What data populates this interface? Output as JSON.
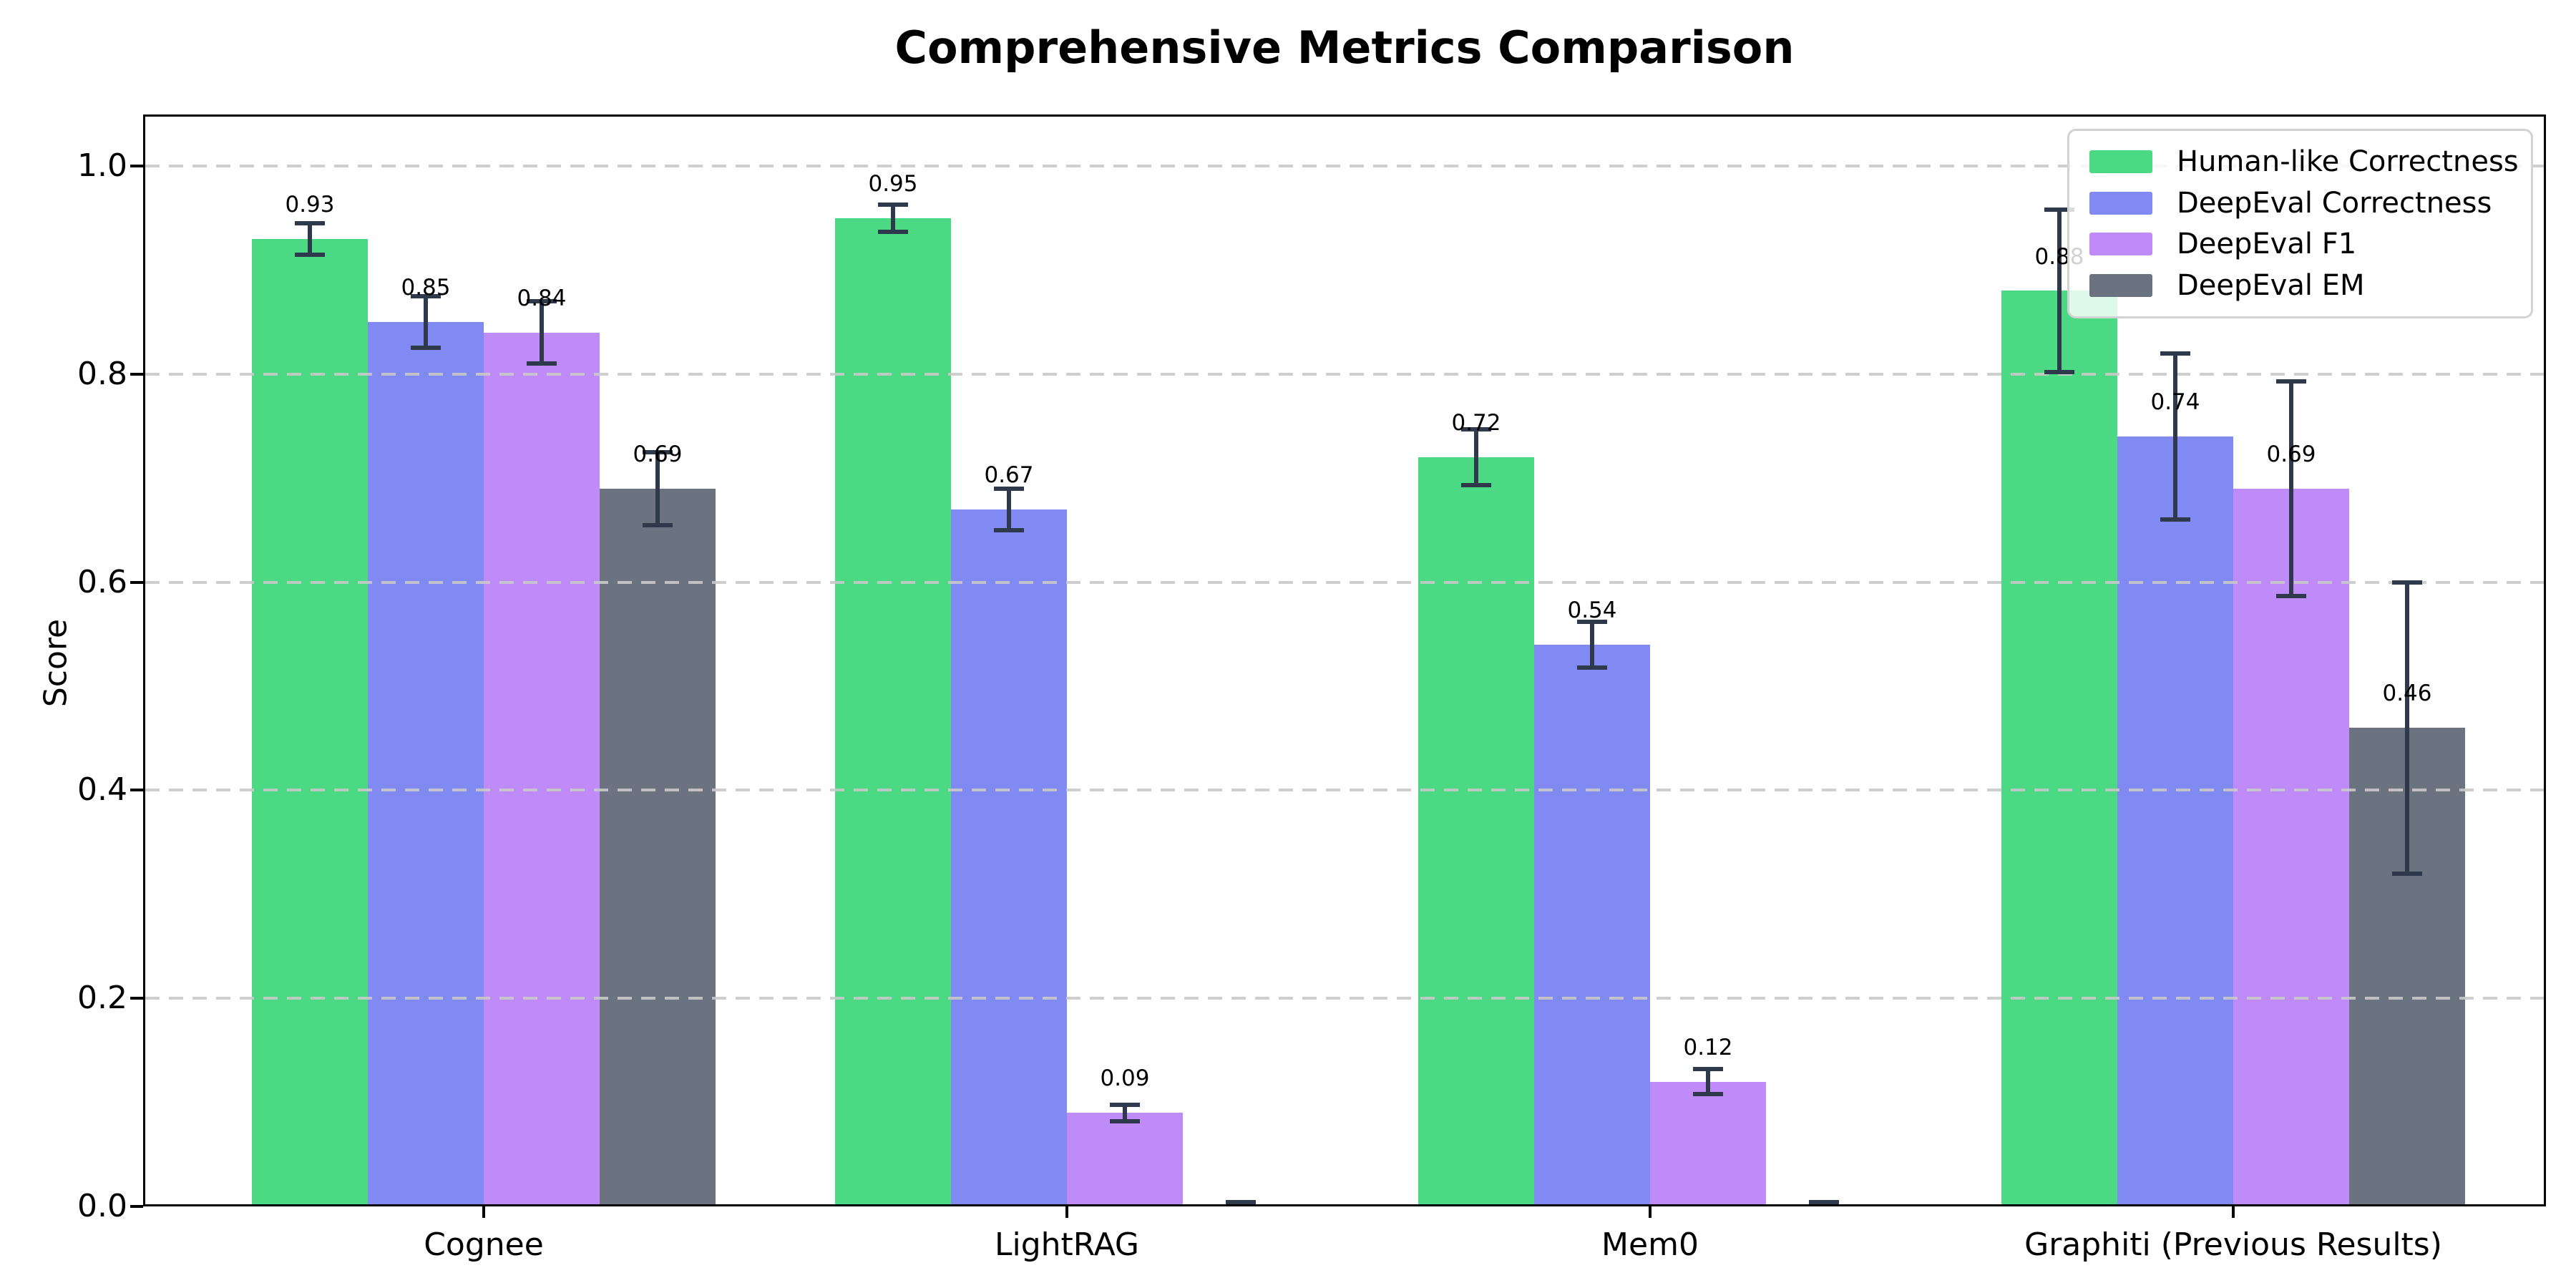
{
  "figure": {
    "title": "Comprehensive Metrics Comparison",
    "ylabel": "Score"
  },
  "chart_data": {
    "type": "bar",
    "title": "Comprehensive Metrics Comparison",
    "xlabel": "",
    "ylabel": "Score",
    "categories": [
      "Cognee",
      "LightRAG",
      "Mem0",
      "Graphiti (Previous Results)"
    ],
    "series": [
      {
        "name": "Human-like Correctness",
        "color": "#4bda83",
        "values": [
          0.93,
          0.95,
          0.72,
          0.88
        ],
        "errors": [
          0.015,
          0.013,
          0.027,
          0.078
        ],
        "bar_labels": [
          "0.93",
          "0.95",
          "0.72",
          "0.88"
        ]
      },
      {
        "name": "DeepEval Correctness",
        "color": "#8189f2",
        "values": [
          0.85,
          0.67,
          0.54,
          0.74
        ],
        "errors": [
          0.025,
          0.02,
          0.022,
          0.08
        ],
        "bar_labels": [
          "0.85",
          "0.67",
          "0.54",
          "0.74"
        ]
      },
      {
        "name": "DeepEval F1",
        "color": "#be8bf8",
        "values": [
          0.84,
          0.09,
          0.12,
          0.69
        ],
        "errors": [
          0.03,
          0.008,
          0.012,
          0.103
        ],
        "bar_labels": [
          "0.84",
          "0.09",
          "0.12",
          "0.69"
        ]
      },
      {
        "name": "DeepEval EM",
        "color": "#6b7280",
        "values": [
          0.69,
          0.0,
          0.0,
          0.46
        ],
        "errors": [
          0.035,
          0.004,
          0.004,
          0.14
        ],
        "bar_labels": [
          "0.69",
          "",
          "",
          "0.46"
        ]
      }
    ],
    "yticks": [
      "0.0",
      "0.2",
      "0.4",
      "0.6",
      "0.8",
      "1.0"
    ],
    "ylim": [
      0,
      1.05
    ],
    "grid": "horizontal-dashed",
    "legend_position": "upper-right",
    "colors": {
      "error_bar": "#2e3a4c",
      "grid": "#c9c9c9",
      "axis": "#000000",
      "background": "#ffffff"
    }
  }
}
